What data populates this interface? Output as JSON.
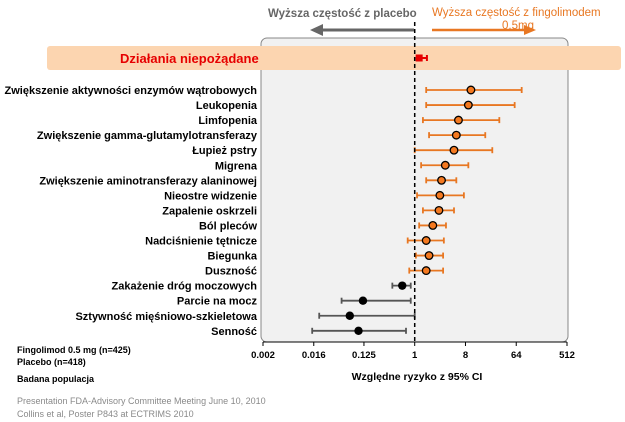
{
  "header": {
    "left_text": "Wyższa częstość z placebo",
    "right_text_line1": "Wyższa częstość z fingolimodem",
    "right_text_line2": "0,5mg",
    "banner_label": "Działania niepożądane"
  },
  "chart_data": {
    "type": "forest",
    "xscale": "log2",
    "xlim": [
      0.002,
      512
    ],
    "reference_line": 1,
    "xticks": [
      "0.002",
      "0.016",
      "0.125",
      "1",
      "8",
      "64",
      "512"
    ],
    "xlabel": "Względne ryzyko z 95% CI",
    "overall": {
      "label": "Działania niepożądane",
      "estimate": 1.2,
      "lower": 1.05,
      "upper": 1.4
    },
    "rows": [
      {
        "label": "Zwiększenie aktywności enzymów wątrobowych",
        "estimate": 10,
        "lower": 1.6,
        "upper": 80
      },
      {
        "label": "Leukopenia",
        "estimate": 9,
        "lower": 1.6,
        "upper": 60
      },
      {
        "label": "Limfopenia",
        "estimate": 6,
        "lower": 1.4,
        "upper": 32
      },
      {
        "label": "Zwiększenie gamma-glutamylotransferazy",
        "estimate": 5.5,
        "lower": 1.8,
        "upper": 18
      },
      {
        "label": "Łupież pstry",
        "estimate": 5,
        "lower": 1.0,
        "upper": 24
      },
      {
        "label": "Migrena",
        "estimate": 3.5,
        "lower": 1.3,
        "upper": 9
      },
      {
        "label": "Zwiększenie aminotransferazy alaninowej",
        "estimate": 3.0,
        "lower": 1.6,
        "upper": 5.5
      },
      {
        "label": "Nieostre widzenie",
        "estimate": 2.8,
        "lower": 1.1,
        "upper": 7.5
      },
      {
        "label": "Zapalenie oskrzeli",
        "estimate": 2.7,
        "lower": 1.4,
        "upper": 5.0
      },
      {
        "label": "Ból pleców",
        "estimate": 2.1,
        "lower": 1.2,
        "upper": 3.6
      },
      {
        "label": "Nadciśnienie tętnicze",
        "estimate": 1.6,
        "lower": 0.75,
        "upper": 3.3
      },
      {
        "label": "Biegunka",
        "estimate": 1.8,
        "lower": 1.05,
        "upper": 3.2
      },
      {
        "label": "Duszność",
        "estimate": 1.6,
        "lower": 0.8,
        "upper": 3.2
      },
      {
        "label": "Zakażenie dróg moczowych",
        "estimate": 0.6,
        "lower": 0.4,
        "upper": 0.85
      },
      {
        "label": "Parcie na mocz",
        "estimate": 0.12,
        "lower": 0.05,
        "upper": 0.85
      },
      {
        "label": "Sztywność mięśniowo-szkieletowa",
        "estimate": 0.07,
        "lower": 0.02,
        "upper": 1.0
      },
      {
        "label": "Senność",
        "estimate": 0.1,
        "lower": 0.015,
        "upper": 0.7
      }
    ],
    "colors": {
      "orange": "#e87722",
      "orange_fill": "#f47920",
      "black": "#000000",
      "gray_bar": "#555555",
      "banner_fill": "#fcd5b0",
      "banner_text": "#e60000",
      "red_marker": "#e60000",
      "panel_fill": "#f1f1f1",
      "panel_border": "#888888",
      "left_arrow": "#666666"
    }
  },
  "legend": {
    "fingolimod": "Fingolimod 0.5 mg (n=425)",
    "placebo": "Placebo (n=418)",
    "population": "Badana populacja"
  },
  "footer": {
    "line1": "Presentation FDA-Advisory Committee Meeting June 10, 2010",
    "line2": "Collins et al, Poster P843 at ECTRIMS 2010"
  }
}
